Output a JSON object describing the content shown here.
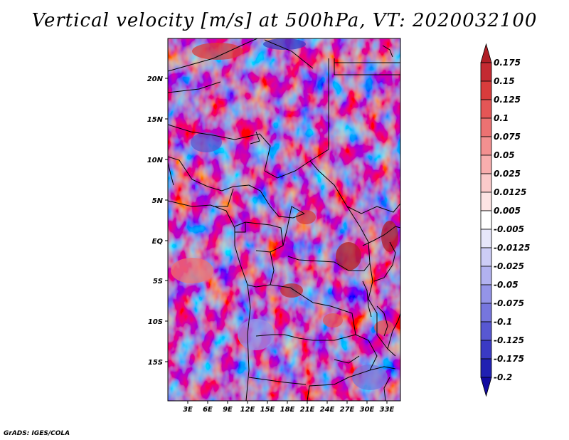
{
  "title": "Vertical velocity [m/s] at 500hPa, VT: 2020032100",
  "credit": "GrADS: IGES/COLA",
  "chart_data": {
    "type": "heatmap",
    "variable": "Vertical velocity",
    "units": "m/s",
    "level": "500hPa",
    "valid_time": "2020032100",
    "lon_range": [
      0,
      35
    ],
    "lat_range": [
      -20,
      25
    ],
    "x_ticks": [
      "3E",
      "6E",
      "9E",
      "12E",
      "15E",
      "18E",
      "21E",
      "24E",
      "27E",
      "30E",
      "33E"
    ],
    "x_tick_values": [
      3,
      6,
      9,
      12,
      15,
      18,
      21,
      24,
      27,
      30,
      33
    ],
    "y_ticks": [
      "20N",
      "15N",
      "10N",
      "5N",
      "EQ",
      "5S",
      "10S",
      "15S"
    ],
    "y_tick_values": [
      20,
      15,
      10,
      5,
      0,
      -5,
      -10,
      -15
    ],
    "colorbar": {
      "labels": [
        "0.175",
        "0.15",
        "0.125",
        "0.1",
        "0.075",
        "0.05",
        "0.025",
        "0.0125",
        "0.005",
        "-0.005",
        "-0.0125",
        "-0.025",
        "-0.05",
        "-0.075",
        "-0.1",
        "-0.125",
        "-0.175",
        "-0.2"
      ],
      "colors": [
        "#b01e26",
        "#c42a32",
        "#d83c3c",
        "#e45656",
        "#ec7272",
        "#f39090",
        "#f8aeae",
        "#fbcaca",
        "#fde4e4",
        "#ffffff",
        "#e6e6fa",
        "#cdcdf6",
        "#b2b2f0",
        "#9494e8",
        "#7676de",
        "#5858d2",
        "#3a3ac4",
        "#2020b2",
        "#120aa0"
      ]
    }
  }
}
